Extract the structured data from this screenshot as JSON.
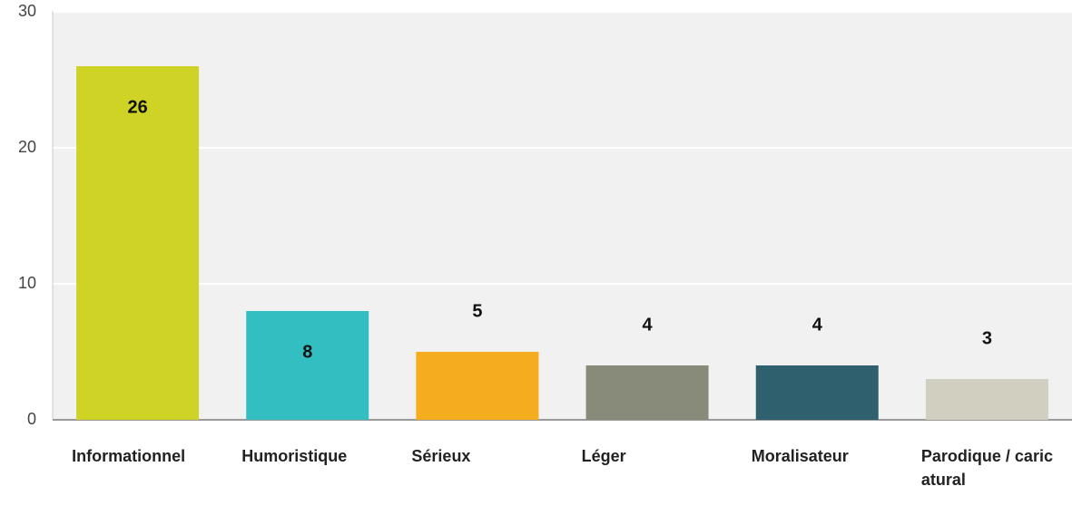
{
  "chart_data": {
    "type": "bar",
    "categories": [
      "Informationnel",
      "Humoristique",
      "Sérieux",
      "Léger",
      "Moralisateur",
      "Parodique / caricatural"
    ],
    "values": [
      26,
      8,
      5,
      4,
      4,
      3
    ],
    "colors": [
      "#cfd325",
      "#33bec2",
      "#f5ad1f",
      "#888a7a",
      "#2e606e",
      "#d1d0c0"
    ],
    "ylim": [
      0,
      30
    ],
    "yticks": [
      0,
      10,
      20,
      30
    ],
    "grid": true
  }
}
